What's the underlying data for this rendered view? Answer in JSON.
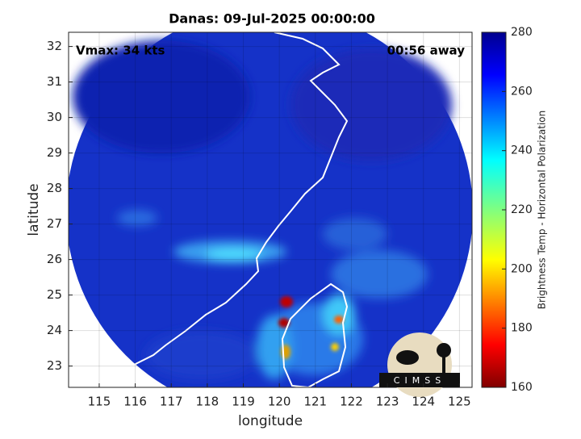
{
  "chart_data": {
    "type": "image",
    "title": "Danas: 09-Jul-2025 00:00:00",
    "annotations": [
      "Vmax: 34 kts",
      "00:56 away"
    ],
    "xlabel": "longitude",
    "ylabel": "latitude",
    "xlim": [
      114.15,
      125.35
    ],
    "xticks": [
      115,
      116,
      117,
      118,
      119,
      120,
      121,
      122,
      123,
      124,
      125
    ],
    "ylim": [
      22.4,
      32.4
    ],
    "yticks": [
      23,
      24,
      25,
      26,
      27,
      28,
      29,
      30,
      31,
      32
    ],
    "grid": true,
    "colorbar": {
      "label": "Brightness Temp - Horizontal Polarization",
      "lim": [
        160,
        280
      ],
      "ticks": [
        160,
        180,
        200,
        220,
        240,
        260,
        280
      ]
    },
    "logo": "CIMSS"
  }
}
